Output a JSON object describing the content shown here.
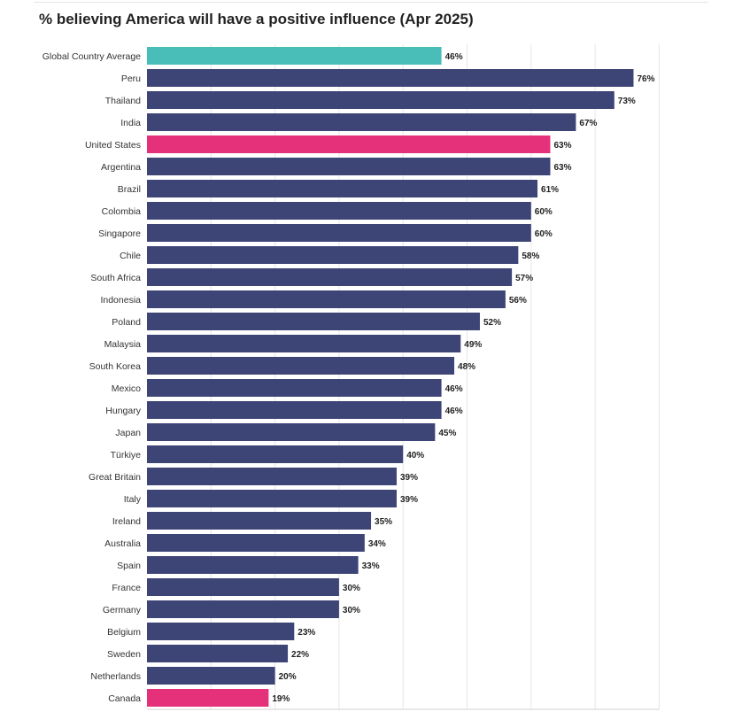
{
  "title": "% believing America will have a positive influence (Apr 2025)",
  "colors": {
    "default": "#3d4476",
    "global": "#49bdb8",
    "highlight": "#e5317a",
    "grid": "#e6e6e6"
  },
  "chart_data": {
    "type": "bar",
    "orientation": "horizontal",
    "title": "% believing America will have a positive influence (Apr 2025)",
    "xlabel": "",
    "ylabel": "",
    "xlim": [
      0,
      80
    ],
    "grid": true,
    "categories": [
      "Global Country Average",
      "Peru",
      "Thailand",
      "India",
      "United States",
      "Argentina",
      "Brazil",
      "Colombia",
      "Singapore",
      "Chile",
      "South Africa",
      "Indonesia",
      "Poland",
      "Malaysia",
      "South Korea",
      "Mexico",
      "Hungary",
      "Japan",
      "Türkiye",
      "Great Britain",
      "Italy",
      "Ireland",
      "Australia",
      "Spain",
      "France",
      "Germany",
      "Belgium",
      "Sweden",
      "Netherlands",
      "Canada"
    ],
    "values": [
      46,
      76,
      73,
      67,
      63,
      63,
      61,
      60,
      60,
      58,
      57,
      56,
      52,
      49,
      48,
      46,
      46,
      45,
      40,
      39,
      39,
      35,
      34,
      33,
      30,
      30,
      23,
      22,
      20,
      19
    ],
    "value_labels": [
      "46%",
      "76%",
      "73%",
      "67%",
      "63%",
      "63%",
      "61%",
      "60%",
      "60%",
      "58%",
      "57%",
      "56%",
      "52%",
      "49%",
      "48%",
      "46%",
      "46%",
      "45%",
      "40%",
      "39%",
      "39%",
      "35%",
      "34%",
      "33%",
      "30%",
      "30%",
      "23%",
      "22%",
      "20%",
      "19%"
    ],
    "bar_colors": [
      "global",
      "default",
      "default",
      "default",
      "highlight",
      "default",
      "default",
      "default",
      "default",
      "default",
      "default",
      "default",
      "default",
      "default",
      "default",
      "default",
      "default",
      "default",
      "default",
      "default",
      "default",
      "default",
      "default",
      "default",
      "default",
      "default",
      "default",
      "default",
      "default",
      "highlight"
    ]
  }
}
